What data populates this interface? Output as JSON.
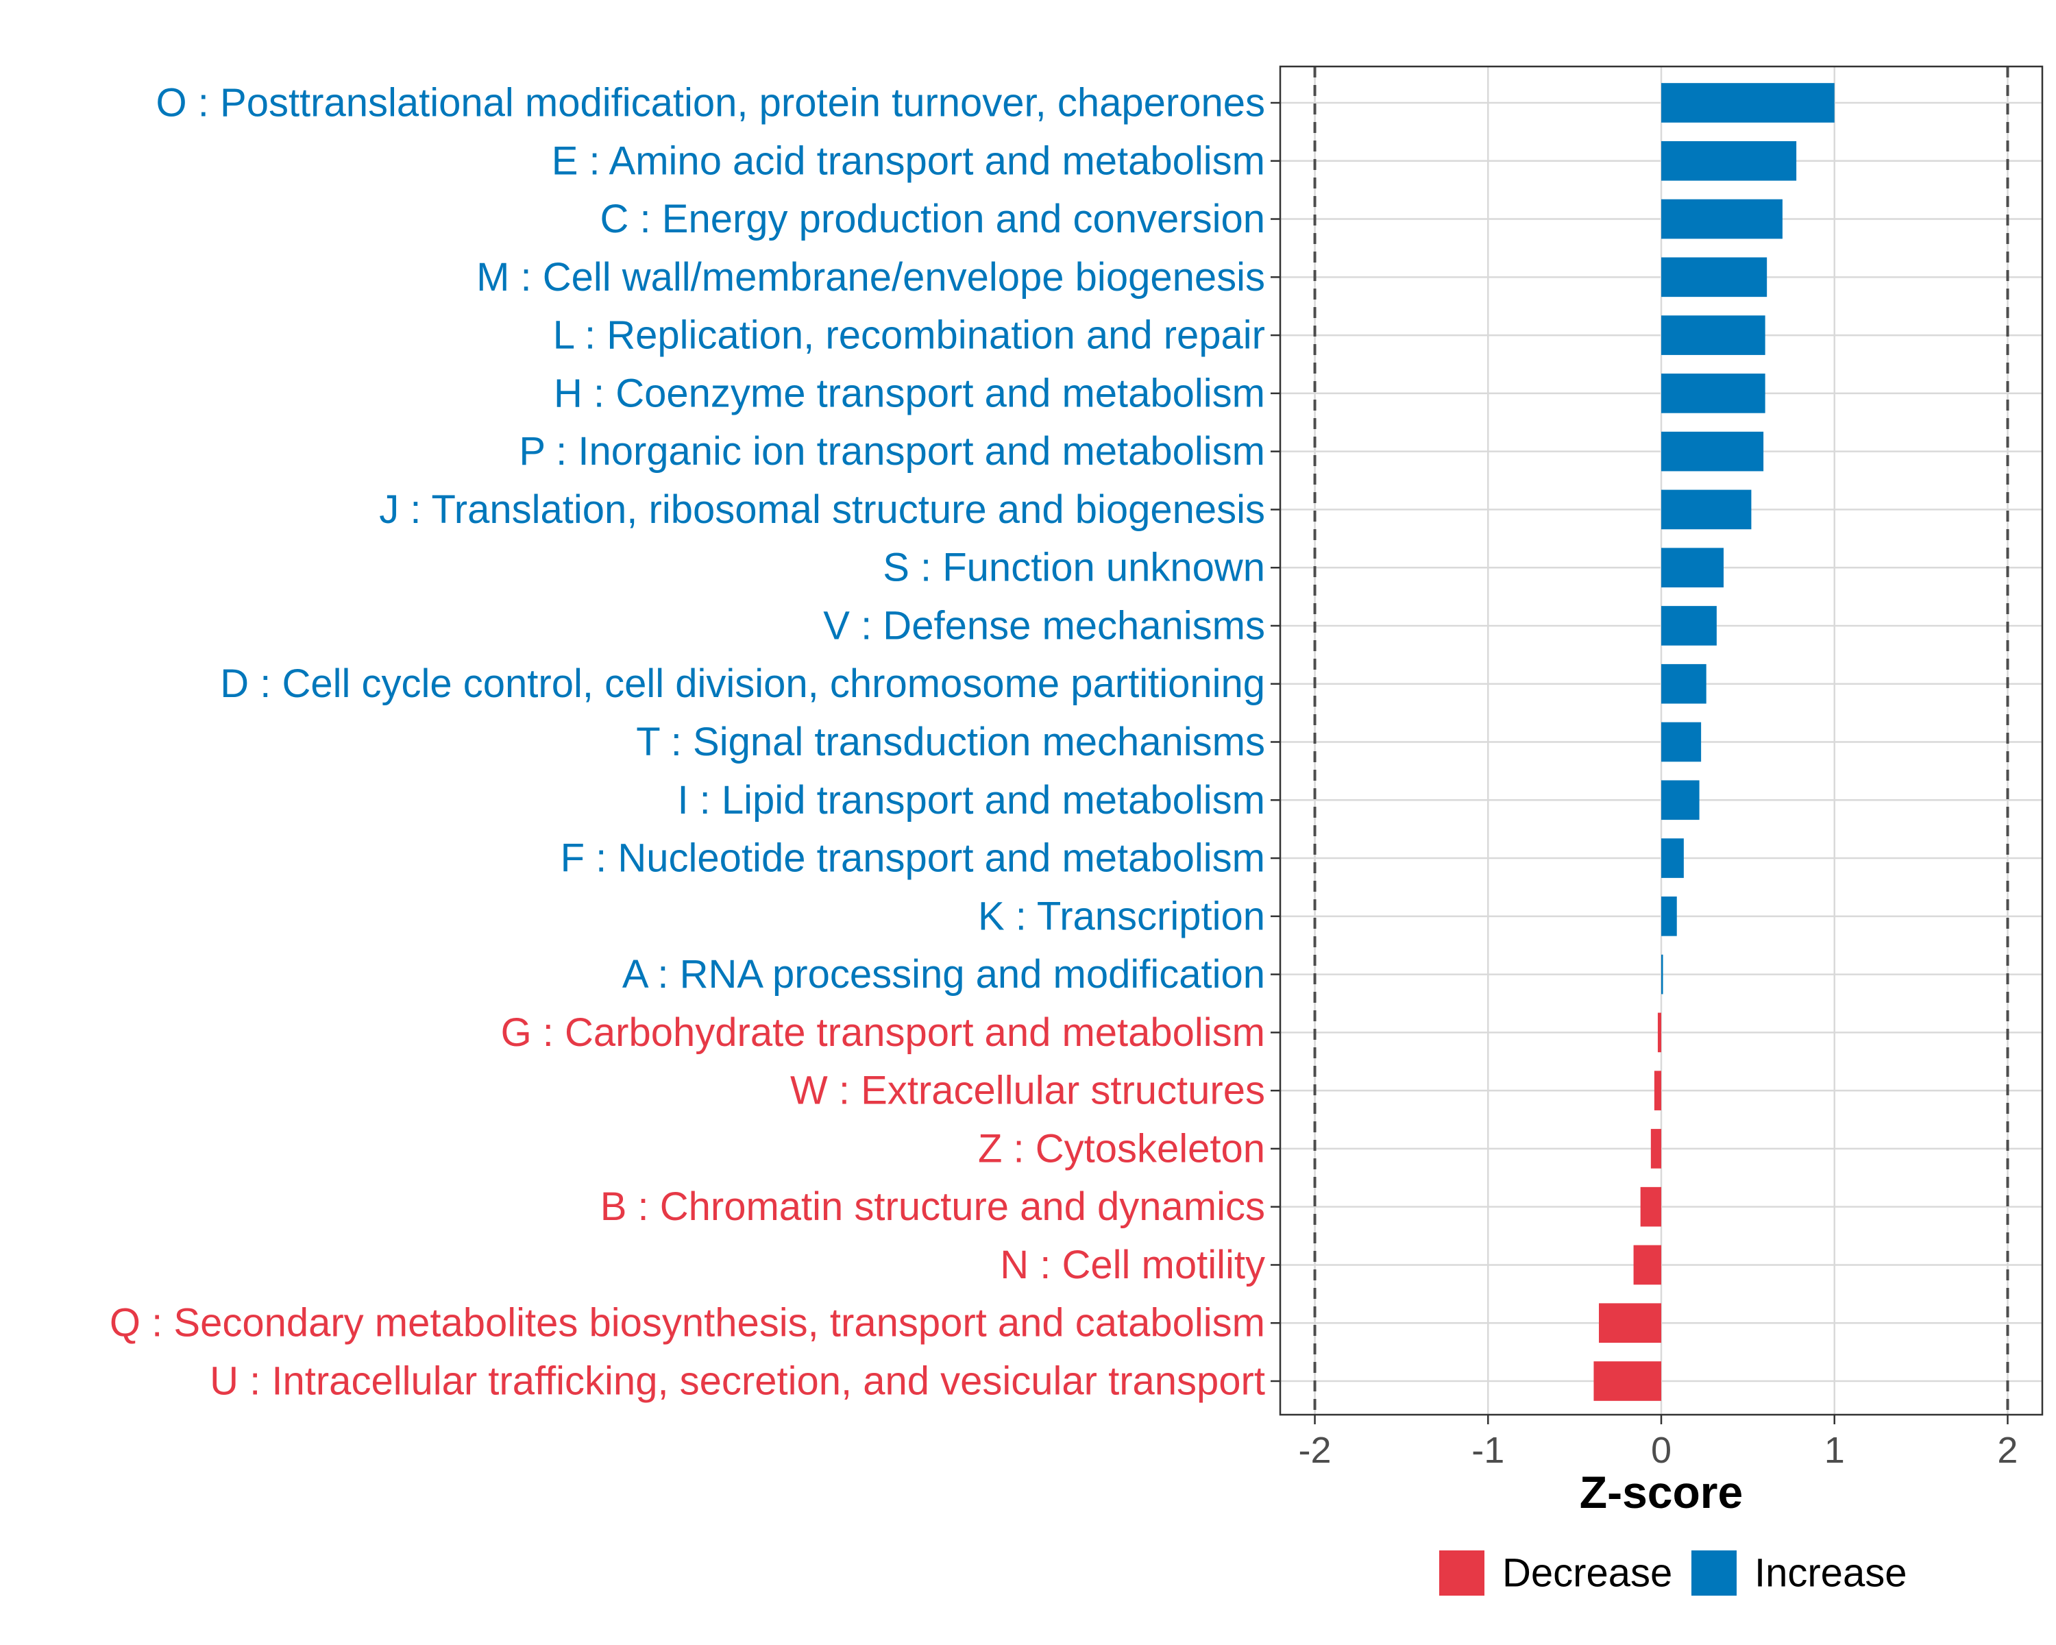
{
  "chart_data": {
    "type": "bar",
    "orientation": "horizontal",
    "xlabel": "Z-score",
    "xlim": [
      -2.2,
      2.2
    ],
    "xticks": [
      -2,
      -1,
      0,
      1,
      2
    ],
    "xtick_labels": [
      "-2",
      "-1",
      "0",
      "1",
      "2"
    ],
    "reference_lines": [
      -2,
      2
    ],
    "grid": true,
    "legend_position": "bottom",
    "colors": {
      "Increase": "#0077BB",
      "Decrease": "#E63946"
    },
    "legend": [
      {
        "label": "Decrease",
        "color": "#E63946"
      },
      {
        "label": "Increase",
        "color": "#0077BB"
      }
    ],
    "categories": [
      "O : Posttranslational modification, protein turnover, chaperones",
      "E : Amino acid transport and metabolism",
      "C : Energy production and conversion",
      "M : Cell wall/membrane/envelope biogenesis",
      "L : Replication, recombination and repair",
      "H : Coenzyme transport and metabolism",
      "P : Inorganic ion transport and metabolism",
      "J : Translation, ribosomal structure and biogenesis",
      "S : Function unknown",
      "V : Defense mechanisms",
      "D : Cell cycle control, cell division, chromosome partitioning",
      "T : Signal transduction mechanisms",
      "I : Lipid transport and metabolism",
      "F : Nucleotide transport and metabolism",
      "K : Transcription",
      "A : RNA processing and modification",
      "G : Carbohydrate transport and metabolism",
      "W : Extracellular structures",
      "Z : Cytoskeleton",
      "B : Chromatin structure and dynamics",
      "N : Cell motility",
      "Q : Secondary metabolites biosynthesis, transport and catabolism",
      "U : Intracellular trafficking, secretion, and vesicular transport"
    ],
    "values": [
      1.0,
      0.78,
      0.7,
      0.61,
      0.6,
      0.6,
      0.59,
      0.52,
      0.36,
      0.32,
      0.26,
      0.23,
      0.22,
      0.13,
      0.09,
      0.01,
      -0.02,
      -0.04,
      -0.06,
      -0.12,
      -0.16,
      -0.36,
      -0.39
    ],
    "groups": [
      "Increase",
      "Increase",
      "Increase",
      "Increase",
      "Increase",
      "Increase",
      "Increase",
      "Increase",
      "Increase",
      "Increase",
      "Increase",
      "Increase",
      "Increase",
      "Increase",
      "Increase",
      "Increase",
      "Decrease",
      "Decrease",
      "Decrease",
      "Decrease",
      "Decrease",
      "Decrease",
      "Decrease"
    ]
  }
}
